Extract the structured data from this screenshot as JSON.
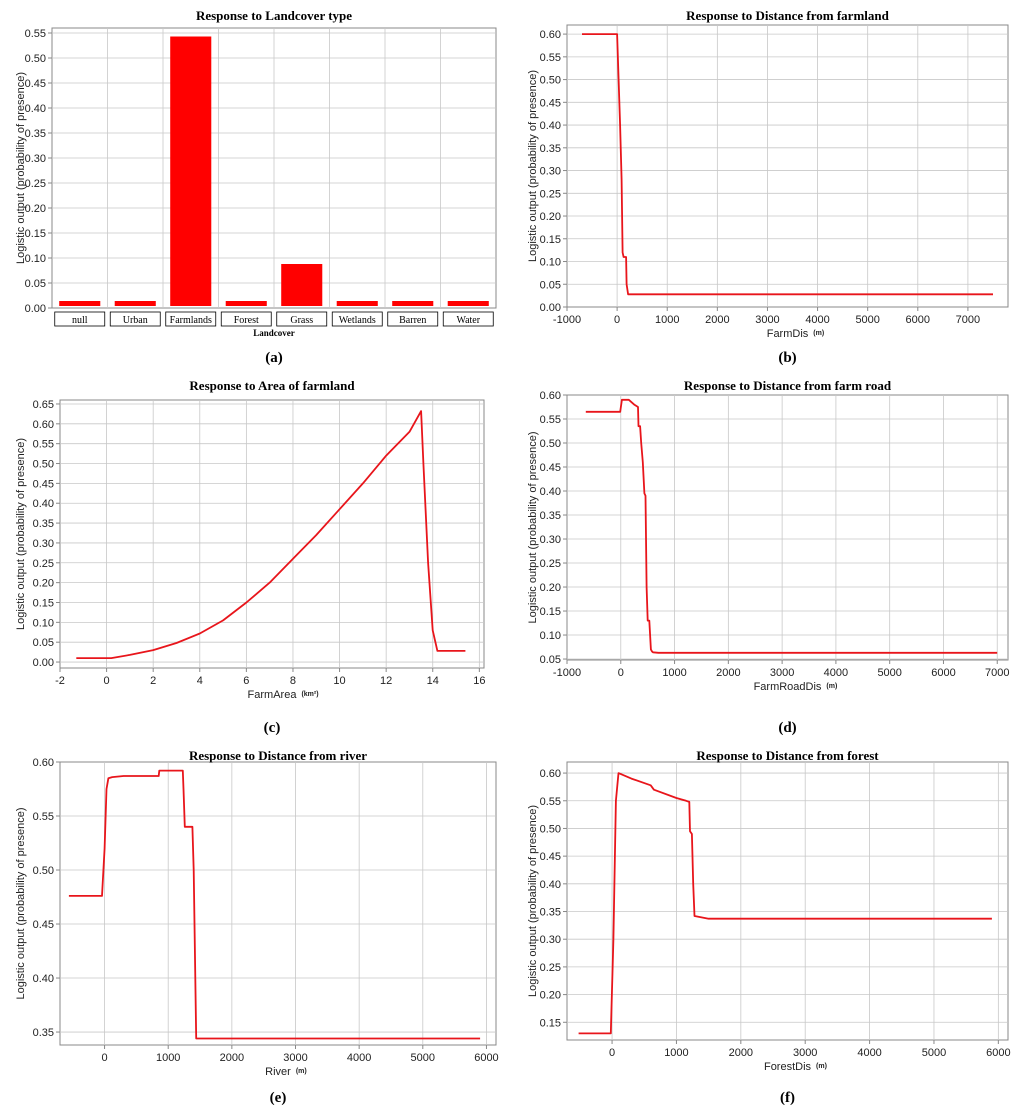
{
  "colors": {
    "series": "#e8151b",
    "bar": "#ff0000",
    "grid": "#c8c8c8",
    "axis": "#888888"
  },
  "chart_data": [
    {
      "id": "a",
      "panel_label": "(a)",
      "type": "bar",
      "title": "Response to Landcover type",
      "xlabel": "Landcover",
      "xunit": "",
      "ylabel": "Logistic output (probability of presence)",
      "categories": [
        "null",
        "Urban",
        "Farmlands",
        "Forest",
        "Grass",
        "Wetlands",
        "Barren",
        "Water"
      ],
      "values": [
        0.014,
        0.014,
        0.543,
        0.014,
        0.088,
        0.014,
        0.014,
        0.014
      ],
      "ylim": [
        0,
        0.56
      ],
      "yticks": [
        0,
        0.05,
        0.1,
        0.15,
        0.2,
        0.25,
        0.3,
        0.35,
        0.4,
        0.45,
        0.5,
        0.55
      ],
      "ytick_labels": [
        "0.00",
        "0.05",
        "0.10",
        "0.15",
        "0.20",
        "0.25",
        "0.30",
        "0.35",
        "0.40",
        "0.45",
        "0.50",
        "0.55"
      ],
      "grid": true
    },
    {
      "id": "b",
      "panel_label": "(b)",
      "type": "line",
      "title": "Response to Distance from farmland",
      "xlabel": "FarmDis",
      "xunit": "(m)",
      "ylabel": "Logistic output (probability of presence)",
      "xlim": [
        -1000,
        7800
      ],
      "ylim": [
        0,
        0.62
      ],
      "xticks": [
        -1000,
        0,
        1000,
        2000,
        3000,
        4000,
        5000,
        6000,
        7000
      ],
      "yticks": [
        0,
        0.05,
        0.1,
        0.15,
        0.2,
        0.25,
        0.3,
        0.35,
        0.4,
        0.45,
        0.5,
        0.55,
        0.6
      ],
      "ytick_labels": [
        "0.00",
        "0.05",
        "0.10",
        "0.15",
        "0.20",
        "0.25",
        "0.30",
        "0.35",
        "0.40",
        "0.45",
        "0.50",
        "0.55",
        "0.60"
      ],
      "grid": true,
      "x": [
        -700,
        0,
        30,
        60,
        90,
        110,
        130,
        160,
        180,
        190,
        220,
        7500
      ],
      "y": [
        0.6,
        0.6,
        0.5,
        0.4,
        0.28,
        0.12,
        0.11,
        0.11,
        0.11,
        0.05,
        0.028,
        0.028
      ]
    },
    {
      "id": "c",
      "panel_label": "(c)",
      "type": "line",
      "title": "Response to Area of farmland",
      "xlabel": "FarmArea",
      "xunit": "(km²)",
      "ylabel": "Logistic output (probability of presence)",
      "xlim": [
        -2,
        16.2
      ],
      "ylim": [
        -0.015,
        0.66
      ],
      "xticks": [
        -2,
        0,
        2,
        4,
        6,
        8,
        10,
        12,
        14,
        16
      ],
      "yticks": [
        0,
        0.05,
        0.1,
        0.15,
        0.2,
        0.25,
        0.3,
        0.35,
        0.4,
        0.45,
        0.5,
        0.55,
        0.6,
        0.65
      ],
      "ytick_labels": [
        "0.00",
        "0.05",
        "0.10",
        "0.15",
        "0.20",
        "0.25",
        "0.30",
        "0.35",
        "0.40",
        "0.45",
        "0.50",
        "0.55",
        "0.60",
        "0.65"
      ],
      "grid": true,
      "x": [
        -1.3,
        0.2,
        1,
        2,
        3,
        4,
        5,
        6,
        7,
        8,
        9,
        10,
        11,
        12,
        13,
        13.5,
        13.6,
        13.8,
        14,
        14.2,
        15.4
      ],
      "y": [
        0.01,
        0.01,
        0.018,
        0.03,
        0.048,
        0.072,
        0.105,
        0.15,
        0.2,
        0.26,
        0.32,
        0.385,
        0.45,
        0.52,
        0.58,
        0.632,
        0.5,
        0.25,
        0.08,
        0.028,
        0.028
      ]
    },
    {
      "id": "d",
      "panel_label": "(d)",
      "type": "line",
      "title": "Response to Distance from farm road",
      "xlabel": "FarmRoadDis",
      "xunit": "(m)",
      "ylabel": "Logistic output (probability of presence)",
      "xlim": [
        -1000,
        7200
      ],
      "ylim": [
        0.048,
        0.6
      ],
      "xticks": [
        -1000,
        0,
        1000,
        2000,
        3000,
        4000,
        5000,
        6000,
        7000
      ],
      "yticks": [
        0.05,
        0.1,
        0.15,
        0.2,
        0.25,
        0.3,
        0.35,
        0.4,
        0.45,
        0.5,
        0.55,
        0.6
      ],
      "ytick_labels": [
        "0.05",
        "0.10",
        "0.15",
        "0.20",
        "0.25",
        "0.30",
        "0.35",
        "0.40",
        "0.45",
        "0.50",
        "0.55",
        "0.60"
      ],
      "grid": true,
      "x": [
        -650,
        -10,
        20,
        150,
        250,
        320,
        330,
        360,
        380,
        410,
        440,
        460,
        480,
        500,
        530,
        560,
        580,
        600,
        700,
        7000
      ],
      "y": [
        0.565,
        0.565,
        0.59,
        0.59,
        0.58,
        0.575,
        0.535,
        0.535,
        0.5,
        0.46,
        0.395,
        0.39,
        0.2,
        0.13,
        0.13,
        0.07,
        0.066,
        0.064,
        0.063,
        0.063
      ]
    },
    {
      "id": "e",
      "panel_label": "(e)",
      "type": "line",
      "title": "Response to Distance from river",
      "xlabel": "River",
      "xunit": "(m)",
      "ylabel": "Logistic output (probability of presence)",
      "xlim": [
        -700,
        6150
      ],
      "ylim": [
        0.338,
        0.6
      ],
      "xticks": [
        0,
        1000,
        2000,
        3000,
        4000,
        5000,
        6000
      ],
      "yticks": [
        0.35,
        0.4,
        0.45,
        0.5,
        0.55,
        0.6
      ],
      "ytick_labels": [
        "0.35",
        "0.40",
        "0.45",
        "0.50",
        "0.55",
        "0.60"
      ],
      "grid": true,
      "x": [
        -560,
        -40,
        0,
        30,
        60,
        120,
        300,
        850,
        860,
        1230,
        1240,
        1260,
        1380,
        1400,
        1440,
        5900
      ],
      "y": [
        0.476,
        0.476,
        0.52,
        0.575,
        0.585,
        0.586,
        0.587,
        0.587,
        0.592,
        0.592,
        0.575,
        0.54,
        0.54,
        0.5,
        0.344,
        0.344
      ]
    },
    {
      "id": "f",
      "panel_label": "(f)",
      "type": "line",
      "title": "Response to Distance from forest",
      "xlabel": "ForestDis",
      "xunit": "(m)",
      "ylabel": "Logistic output (probability of presence)",
      "xlim": [
        -700,
        6150
      ],
      "ylim": [
        0.118,
        0.62
      ],
      "xticks": [
        0,
        1000,
        2000,
        3000,
        4000,
        5000,
        6000
      ],
      "yticks": [
        0.15,
        0.2,
        0.25,
        0.3,
        0.35,
        0.4,
        0.45,
        0.5,
        0.55,
        0.6
      ],
      "ytick_labels": [
        "0.15",
        "0.20",
        "0.25",
        "0.30",
        "0.35",
        "0.40",
        "0.45",
        "0.50",
        "0.55",
        "0.60"
      ],
      "grid": true,
      "x": [
        -520,
        -20,
        20,
        60,
        100,
        300,
        600,
        650,
        1000,
        1150,
        1200,
        1210,
        1240,
        1260,
        1280,
        1500,
        5900
      ],
      "y": [
        0.13,
        0.13,
        0.3,
        0.55,
        0.6,
        0.59,
        0.578,
        0.57,
        0.555,
        0.55,
        0.548,
        0.495,
        0.49,
        0.4,
        0.342,
        0.337,
        0.337
      ]
    }
  ]
}
